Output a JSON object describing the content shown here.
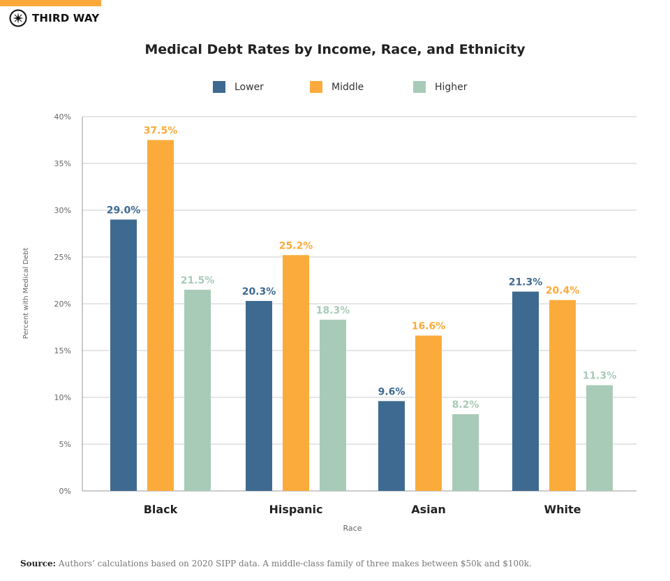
{
  "brand": {
    "name": "THIRD WAY",
    "accent": "#fba93b"
  },
  "chart_data": {
    "type": "bar",
    "title": "Medical Debt Rates by Income, Race, and Ethnicity",
    "xlabel": "Race",
    "ylabel": "Percent with Medical Debt",
    "categories": [
      "Black",
      "Hispanic",
      "Asian",
      "White"
    ],
    "series": [
      {
        "name": "Lower",
        "color": "#3e6a91",
        "values": [
          29.0,
          20.3,
          9.6,
          21.3
        ]
      },
      {
        "name": "Middle",
        "color": "#fbab3c",
        "values": [
          37.5,
          25.2,
          16.6,
          20.4
        ]
      },
      {
        "name": "Higher",
        "color": "#a8cbb8",
        "values": [
          21.5,
          18.3,
          8.2,
          11.3
        ]
      }
    ],
    "ylim": [
      0,
      40
    ],
    "yticks": [
      "0%",
      "5%",
      "10%",
      "15%",
      "20%",
      "25%",
      "30%",
      "35%",
      "40%"
    ],
    "grid": true,
    "legend": "top-center"
  },
  "source": {
    "label": "Source:",
    "text": "Authors’ calculations based on 2020 SIPP data. A middle-class family of three makes between $50k and $100k."
  }
}
